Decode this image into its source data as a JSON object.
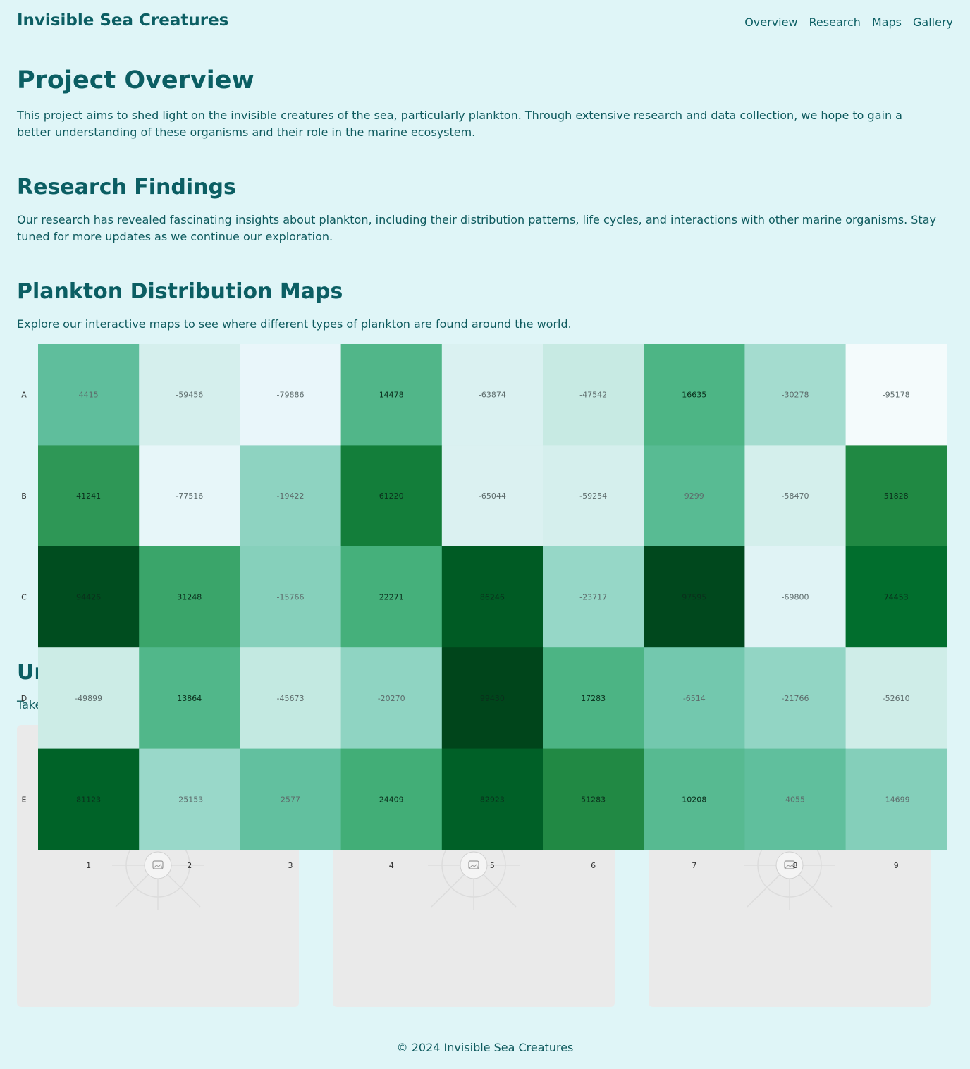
{
  "header": {
    "title": "Invisible Sea Creatures",
    "nav": [
      "Overview",
      "Research",
      "Maps",
      "Gallery"
    ]
  },
  "overview": {
    "heading": "Project Overview",
    "text": "This project aims to shed light on the invisible creatures of the sea, particularly plankton. Through extensive research and data collection, we hope to gain a better understanding of these organisms and their role in the marine ecosystem."
  },
  "research": {
    "heading": "Research Findings",
    "text": "Our research has revealed fascinating insights about plankton, including their distribution patterns, life cycles, and interactions with other marine organisms. Stay tuned for more updates as we continue our exploration."
  },
  "maps": {
    "heading": "Plankton Distribution Maps",
    "text": "Explore our interactive maps to see where different types of plankton are found around the world."
  },
  "underwater": {
    "heading": "Ur",
    "text": "Take"
  },
  "gallery": {
    "images": [
      {
        "icon": "image-placeholder-icon"
      },
      {
        "icon": "image-placeholder-icon"
      },
      {
        "icon": "image-placeholder-icon"
      }
    ]
  },
  "footer": {
    "text": "© 2024 Invisible Sea Creatures"
  },
  "chart_data": {
    "type": "heatmap",
    "rows": [
      "A",
      "B",
      "C",
      "D",
      "E"
    ],
    "columns": [
      "1",
      "2",
      "3",
      "4",
      "5",
      "6",
      "7",
      "8",
      "9"
    ],
    "values": [
      [
        4415,
        -59456,
        -79886,
        14478,
        -63874,
        -47542,
        16635,
        -30278,
        -95178
      ],
      [
        41241,
        -77516,
        -19422,
        61220,
        -65044,
        -59254,
        9299,
        -58470,
        51828
      ],
      [
        94426,
        31248,
        -15766,
        22271,
        86246,
        -23717,
        97595,
        -69800,
        74453
      ],
      [
        -49899,
        13864,
        -45673,
        -20270,
        99430,
        17283,
        -6514,
        -21766,
        -52610
      ],
      [
        81123,
        -25153,
        2577,
        24409,
        82923,
        51283,
        10208,
        4055,
        -14699
      ]
    ],
    "colorscale": "Greens",
    "vmin": -100000,
    "vmax": 100000
  }
}
